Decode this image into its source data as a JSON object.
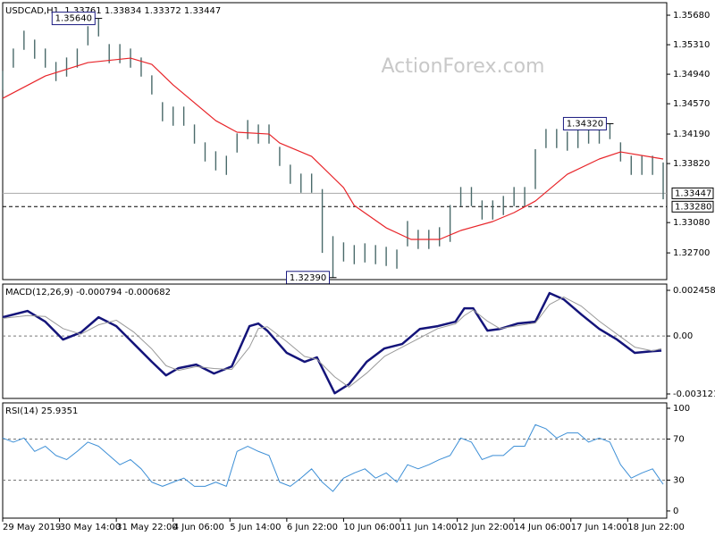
{
  "chart_data": [
    {
      "type": "ohlc",
      "title": "USDCAD,H1  1.33761 1.33834 1.33372 1.33447",
      "watermark": "ActionForex.com",
      "color": "#4a6a6a",
      "xlim": [
        0,
        374
      ],
      "x": [
        0,
        6,
        12,
        18,
        24,
        30,
        36,
        42,
        48,
        54,
        60,
        66,
        72,
        78,
        84,
        90,
        96,
        102,
        108,
        114,
        120,
        126,
        132,
        138,
        144,
        150,
        156,
        162,
        168,
        174,
        180,
        186,
        192,
        198,
        204,
        210,
        216,
        222,
        228,
        234,
        240,
        246,
        252,
        258,
        264,
        270,
        276,
        282,
        288,
        294,
        300,
        306,
        312,
        318,
        324,
        330,
        336,
        342,
        348,
        354,
        360,
        366,
        372
      ],
      "high": [
        1.34982,
        1.35262,
        1.35486,
        1.35374,
        1.35262,
        1.35094,
        1.3515,
        1.35262,
        1.35542,
        1.3564,
        1.35318,
        1.35318,
        1.35262,
        1.3515,
        1.34926,
        1.3459,
        1.34534,
        1.34534,
        1.3431,
        1.34086,
        1.33974,
        1.33918,
        1.34198,
        1.34366,
        1.3431,
        1.3431,
        1.3403,
        1.33806,
        1.33694,
        1.33694,
        1.335,
        1.3291,
        1.32832,
        1.32798,
        1.3282,
        1.32798,
        1.32776,
        1.32742,
        1.331,
        1.32989,
        1.32989,
        1.33022,
        1.333,
        1.33526,
        1.33526,
        1.33358,
        1.33358,
        1.33414,
        1.33526,
        1.33526,
        1.34,
        1.34254,
        1.34254,
        1.34221,
        1.34254,
        1.3431,
        1.3431,
        1.3432,
        1.34086,
        1.33918,
        1.33918,
        1.33918,
        1.33834
      ],
      "low": [
        1.34742,
        1.35022,
        1.35246,
        1.35134,
        1.35022,
        1.34854,
        1.3491,
        1.35022,
        1.35302,
        1.35414,
        1.35078,
        1.35078,
        1.35022,
        1.3491,
        1.34686,
        1.3435,
        1.34294,
        1.34294,
        1.3407,
        1.33846,
        1.33734,
        1.33678,
        1.33958,
        1.34126,
        1.3407,
        1.3407,
        1.3379,
        1.33566,
        1.33454,
        1.33454,
        1.327,
        1.3239,
        1.32592,
        1.32558,
        1.3258,
        1.32558,
        1.32536,
        1.32502,
        1.32782,
        1.32749,
        1.32749,
        1.32782,
        1.32838,
        1.33286,
        1.33286,
        1.33118,
        1.33118,
        1.33174,
        1.33286,
        1.33286,
        1.335,
        1.34014,
        1.34014,
        1.33981,
        1.34014,
        1.3407,
        1.3407,
        1.34126,
        1.33846,
        1.33678,
        1.33678,
        1.33678,
        1.33372
      ],
      "moving_average": {
        "color": "#e8252a",
        "x": [
          0,
          24,
          48,
          72,
          84,
          96,
          120,
          132,
          150,
          156,
          174,
          192,
          198,
          216,
          230,
          246,
          258,
          276,
          288,
          300,
          318,
          336,
          348,
          372
        ],
        "values": [
          1.34638,
          1.34918,
          1.35086,
          1.35142,
          1.35064,
          1.34806,
          1.34358,
          1.34213,
          1.3419,
          1.34078,
          1.3391,
          1.33518,
          1.33294,
          1.33014,
          1.32869,
          1.32869,
          1.32981,
          1.33093,
          1.33205,
          1.3335,
          1.33686,
          1.33877,
          1.33966,
          1.33877
        ]
      },
      "ylim": [
        1.32365,
        1.35837
      ],
      "yticks": [
        {
          "value": 1.3568,
          "label": "1.35680"
        },
        {
          "value": 1.3531,
          "label": "1.35310"
        },
        {
          "value": 1.3494,
          "label": "1.34940"
        },
        {
          "value": 1.3457,
          "label": "1.34570"
        },
        {
          "value": 1.3419,
          "label": "1.34190"
        },
        {
          "value": 1.3382,
          "label": "1.33820"
        },
        {
          "value": 1.3308,
          "label": "1.33080"
        },
        {
          "value": 1.327,
          "label": "1.32700"
        }
      ],
      "price_lines": [
        {
          "value": 1.33447,
          "style": "solid"
        },
        {
          "value": 1.3328,
          "label": "1.33280",
          "style": "dashed"
        }
      ],
      "annotations": [
        {
          "value": 1.3564,
          "label": "1.35640",
          "x": 54
        },
        {
          "value": 1.3239,
          "label": "1.32390",
          "x": 186
        },
        {
          "value": 1.3432,
          "label": "1.34320",
          "x": 342
        }
      ]
    },
    {
      "type": "macd",
      "title": "MACD(12,26,9) -0.000794 -0.000682",
      "xlim": [
        0,
        374
      ],
      "x": [
        0,
        14,
        24,
        34,
        44,
        54,
        64,
        74,
        84,
        92,
        99,
        109,
        119,
        129,
        139,
        144,
        149,
        160,
        170,
        177,
        187,
        195,
        205,
        215,
        225,
        235,
        245,
        255,
        260,
        265,
        273,
        280,
        290,
        300,
        308,
        316,
        326,
        336,
        346,
        356,
        366,
        371
      ],
      "series": [
        {
          "color": "#14147a",
          "width": 2.5,
          "values": [
            0.00101,
            0.00135,
            0.00077,
            -0.00019,
            0.00019,
            0.00101,
            0.00053,
            -0.00043,
            -0.00139,
            -0.00212,
            -0.00173,
            -0.00154,
            -0.00202,
            -0.00164,
            0.00053,
            0.00067,
            0.00029,
            -0.00091,
            -0.00139,
            -0.00115,
            -0.00308,
            -0.0026,
            -0.00139,
            -0.00067,
            -0.00043,
            0.00038,
            0.00053,
            0.00077,
            0.00149,
            0.00149,
            0.00029,
            0.00038,
            0.00067,
            0.00077,
            0.00231,
            0.00197,
            0.00115,
            0.00038,
            -0.00019,
            -0.00091,
            -0.00082,
            -0.00079
          ]
        },
        {
          "color": "#9a9a9a",
          "width": 1,
          "values": [
            0.00095,
            0.0011,
            0.00105,
            0.0004,
            0.0001,
            0.0006,
            0.00085,
            0.0002,
            -0.0007,
            -0.0016,
            -0.00185,
            -0.00165,
            -0.00175,
            -0.0018,
            -0.0006,
            0.0004,
            0.0005,
            -0.0003,
            -0.0011,
            -0.00125,
            -0.0022,
            -0.00275,
            -0.002,
            -0.0011,
            -0.0006,
            -0.0001,
            0.0004,
            0.00065,
            0.0011,
            0.0014,
            0.0008,
            0.0004,
            0.00055,
            0.0007,
            0.0017,
            0.0021,
            0.0016,
            0.0008,
            0.0001,
            -0.0006,
            -0.0008,
            -0.00068
          ]
        }
      ],
      "ylim": [
        -0.003361,
        0.002795
      ],
      "yticks": [
        0.002458,
        {
          "value": 0,
          "label": "0.00"
        },
        -0.003121
      ],
      "levels": [
        0
      ]
    },
    {
      "type": "line",
      "title": "RSI(14) 25.9351",
      "color": "#3d8fd6",
      "xlim": [
        0,
        374
      ],
      "x": [
        0,
        6,
        12,
        18,
        24,
        30,
        36,
        42,
        48,
        54,
        60,
        66,
        72,
        78,
        84,
        90,
        96,
        102,
        108,
        114,
        120,
        126,
        132,
        138,
        144,
        150,
        156,
        162,
        168,
        174,
        180,
        186,
        192,
        198,
        204,
        210,
        216,
        222,
        228,
        234,
        240,
        246,
        252,
        258,
        264,
        270,
        276,
        282,
        288,
        294,
        300,
        306,
        312,
        318,
        324,
        330,
        336,
        342,
        348,
        354,
        360,
        366,
        372
      ],
      "values": [
        71,
        67,
        71,
        58,
        63,
        54,
        50,
        58,
        67,
        63,
        54,
        45,
        50,
        41,
        28,
        24,
        28,
        32,
        24,
        24,
        28,
        24,
        58,
        63,
        58,
        54,
        28,
        24,
        32,
        41,
        28,
        19,
        32,
        37,
        41,
        32,
        37,
        28,
        45,
        41,
        45,
        50,
        54,
        71,
        67,
        50,
        54,
        54,
        63,
        63,
        84,
        80,
        71,
        76,
        76,
        67,
        71,
        67,
        45,
        32,
        37,
        41,
        25.94
      ],
      "ylim": [
        -7,
        105.2
      ],
      "yticks": [
        100,
        70,
        30,
        0
      ],
      "levels": [
        70,
        30
      ],
      "xticks": [
        {
          "value": 0,
          "label": "29 May 2019"
        },
        {
          "value": 32,
          "label": "30 May 14:00"
        },
        {
          "value": 64,
          "label": "31 May 22:00"
        },
        {
          "value": 96,
          "label": "4 Jun 06:00"
        },
        {
          "value": 128,
          "label": "5 Jun 14:00"
        },
        {
          "value": 160,
          "label": "6 Jun 22:00"
        },
        {
          "value": 192,
          "label": "10 Jun 06:00"
        },
        {
          "value": 224,
          "label": "11 Jun 14:00"
        },
        {
          "value": 256,
          "label": "12 Jun 22:00"
        },
        {
          "value": 288,
          "label": "14 Jun 06:00"
        },
        {
          "value": 320,
          "label": "17 Jun 14:00"
        },
        {
          "value": 352,
          "label": "18 Jun 22:00"
        }
      ]
    }
  ]
}
